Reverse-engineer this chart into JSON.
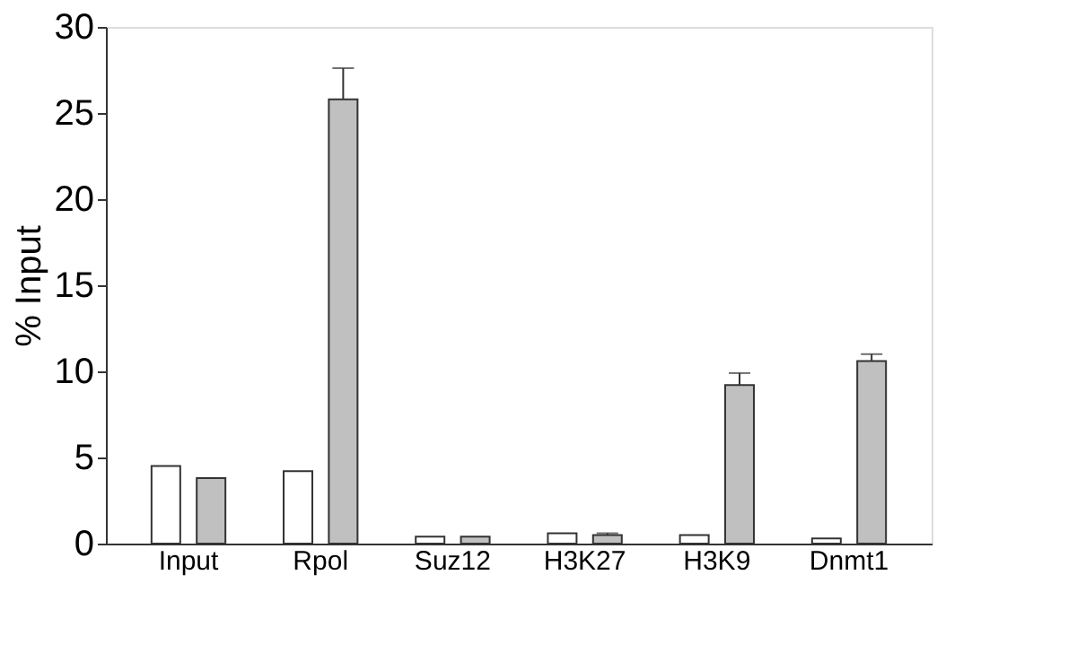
{
  "chart_data": {
    "type": "bar",
    "ylabel": "% Input",
    "categories": [
      "Input",
      "Rpol",
      "Suz12",
      "H3K27",
      "H3K9",
      "Dnmt1"
    ],
    "series": [
      {
        "color": "#ffffff",
        "values": [
          4.5,
          4.2,
          0.4,
          0.6,
          0.5,
          0.3
        ]
      },
      {
        "color": "#c0c0c0",
        "values": [
          3.8,
          25.8,
          0.4,
          0.5,
          9.2,
          10.6
        ],
        "errors": [
          null,
          [
            25.8,
            27.6
          ],
          null,
          [
            0.5,
            0.6
          ],
          [
            9.2,
            9.9
          ],
          [
            10.6,
            11.0
          ]
        ]
      }
    ],
    "ylim": [
      0,
      30
    ],
    "yticks": [
      0,
      5,
      10,
      15,
      20,
      25,
      30
    ],
    "grid": false,
    "legend": false
  }
}
